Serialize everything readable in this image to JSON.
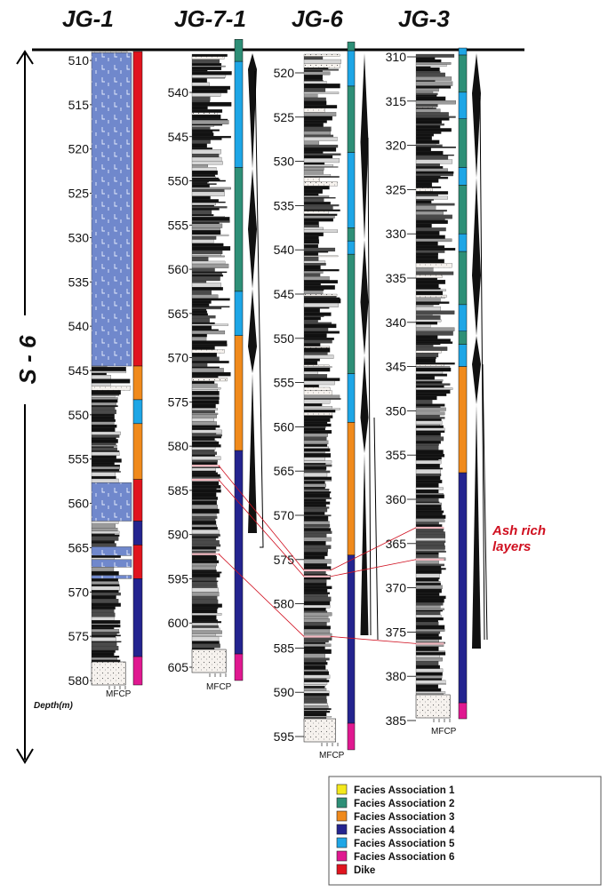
{
  "wells": [
    {
      "name": "JG-1"
    },
    {
      "name": "JG-7-1"
    },
    {
      "name": "JG-6"
    },
    {
      "name": "JG-3"
    }
  ],
  "sequence_label": "S - 6",
  "depth_label": "Depth(m)",
  "grain_scale_label": "MFCP",
  "ash_label": [
    "Ash rich",
    "layers"
  ],
  "legend": [
    {
      "label": "Facies Association 1",
      "color": "#f4e81c"
    },
    {
      "label": "Facies Association 2",
      "color": "#2e8f77"
    },
    {
      "label": "Facies Association 3",
      "color": "#f08a1c"
    },
    {
      "label": "Facies Association 4",
      "color": "#24248f"
    },
    {
      "label": "Facies Association 5",
      "color": "#1ea6e6"
    },
    {
      "label": "Facies Association 6",
      "color": "#e01890"
    },
    {
      "label": "Dike",
      "color": "#e0141e"
    }
  ],
  "ticks": {
    "JG-1": [
      "510",
      "515",
      "520",
      "525",
      "530",
      "535",
      "540",
      "545",
      "550",
      "555",
      "560",
      "565",
      "570",
      "575",
      "580"
    ],
    "JG-7-1": [
      "540",
      "545",
      "550",
      "555",
      "560",
      "565",
      "570",
      "575",
      "580",
      "585",
      "590",
      "595",
      "600",
      "605"
    ],
    "JG-6": [
      "520",
      "525",
      "530",
      "535",
      "540",
      "545",
      "550",
      "555",
      "560",
      "565",
      "570",
      "575",
      "580",
      "585",
      "590",
      "595"
    ],
    "JG-3": [
      "310",
      "315",
      "320",
      "325",
      "330",
      "335",
      "340",
      "345",
      "350",
      "355",
      "360",
      "365",
      "370",
      "375",
      "380",
      "385"
    ]
  },
  "facies_columns": {
    "JG-1": [
      {
        "from": 509,
        "to": 544.5,
        "facies": "Dike"
      },
      {
        "from": 544.5,
        "to": 548.3,
        "facies": "Facies Association 3"
      },
      {
        "from": 548.3,
        "to": 551,
        "facies": "Facies Association 5"
      },
      {
        "from": 551,
        "to": 557.3,
        "facies": "Facies Association 3"
      },
      {
        "from": 557.3,
        "to": 562,
        "facies": "Dike"
      },
      {
        "from": 562,
        "to": 564.7,
        "facies": "Facies Association 4"
      },
      {
        "from": 564.7,
        "to": 568.5,
        "facies": "Dike"
      },
      {
        "from": 568.5,
        "to": 577.3,
        "facies": "Facies Association 4"
      },
      {
        "from": 577.3,
        "to": 580.5,
        "facies": "Facies Association 6"
      }
    ],
    "JG-7-1": [
      {
        "from": 534,
        "to": 536.5,
        "facies": "Facies Association 2"
      },
      {
        "from": 536.5,
        "to": 548.5,
        "facies": "Facies Association 5"
      },
      {
        "from": 548.5,
        "to": 562.5,
        "facies": "Facies Association 2"
      },
      {
        "from": 562.5,
        "to": 567.5,
        "facies": "Facies Association 5"
      },
      {
        "from": 567.5,
        "to": 580.5,
        "facies": "Facies Association 3"
      },
      {
        "from": 580.5,
        "to": 603.5,
        "facies": "Facies Association 4"
      },
      {
        "from": 603.5,
        "to": 606.5,
        "facies": "Facies Association 6"
      }
    ],
    "JG-6": [
      {
        "from": 516.5,
        "to": 517.5,
        "facies": "Facies Association 2"
      },
      {
        "from": 517.5,
        "to": 521.5,
        "facies": "Facies Association 5"
      },
      {
        "from": 521.5,
        "to": 529,
        "facies": "Facies Association 2"
      },
      {
        "from": 529,
        "to": 537.5,
        "facies": "Facies Association 5"
      },
      {
        "from": 537.5,
        "to": 539,
        "facies": "Facies Association 2"
      },
      {
        "from": 539,
        "to": 540.5,
        "facies": "Facies Association 5"
      },
      {
        "from": 540.5,
        "to": 554,
        "facies": "Facies Association 2"
      },
      {
        "from": 554,
        "to": 559.5,
        "facies": "Facies Association 5"
      },
      {
        "from": 559.5,
        "to": 574.5,
        "facies": "Facies Association 3"
      },
      {
        "from": 574.5,
        "to": 593.5,
        "facies": "Facies Association 4"
      },
      {
        "from": 593.5,
        "to": 596.5,
        "facies": "Facies Association 6"
      }
    ],
    "JG-3": [
      {
        "from": 309,
        "to": 309.8,
        "facies": "Facies Association 5"
      },
      {
        "from": 309.8,
        "to": 314,
        "facies": "Facies Association 2"
      },
      {
        "from": 314,
        "to": 317,
        "facies": "Facies Association 5"
      },
      {
        "from": 317,
        "to": 322.5,
        "facies": "Facies Association 2"
      },
      {
        "from": 322.5,
        "to": 324.5,
        "facies": "Facies Association 5"
      },
      {
        "from": 324.5,
        "to": 330,
        "facies": "Facies Association 2"
      },
      {
        "from": 330,
        "to": 332,
        "facies": "Facies Association 5"
      },
      {
        "from": 332,
        "to": 338,
        "facies": "Facies Association 2"
      },
      {
        "from": 338,
        "to": 341,
        "facies": "Facies Association 5"
      },
      {
        "from": 341,
        "to": 342.5,
        "facies": "Facies Association 2"
      },
      {
        "from": 342.5,
        "to": 345,
        "facies": "Facies Association 5"
      },
      {
        "from": 345,
        "to": 357,
        "facies": "Facies Association 3"
      },
      {
        "from": 357,
        "to": 383,
        "facies": "Facies Association 4"
      },
      {
        "from": 383,
        "to": 384.8,
        "facies": "Facies Association 6"
      }
    ]
  }
}
